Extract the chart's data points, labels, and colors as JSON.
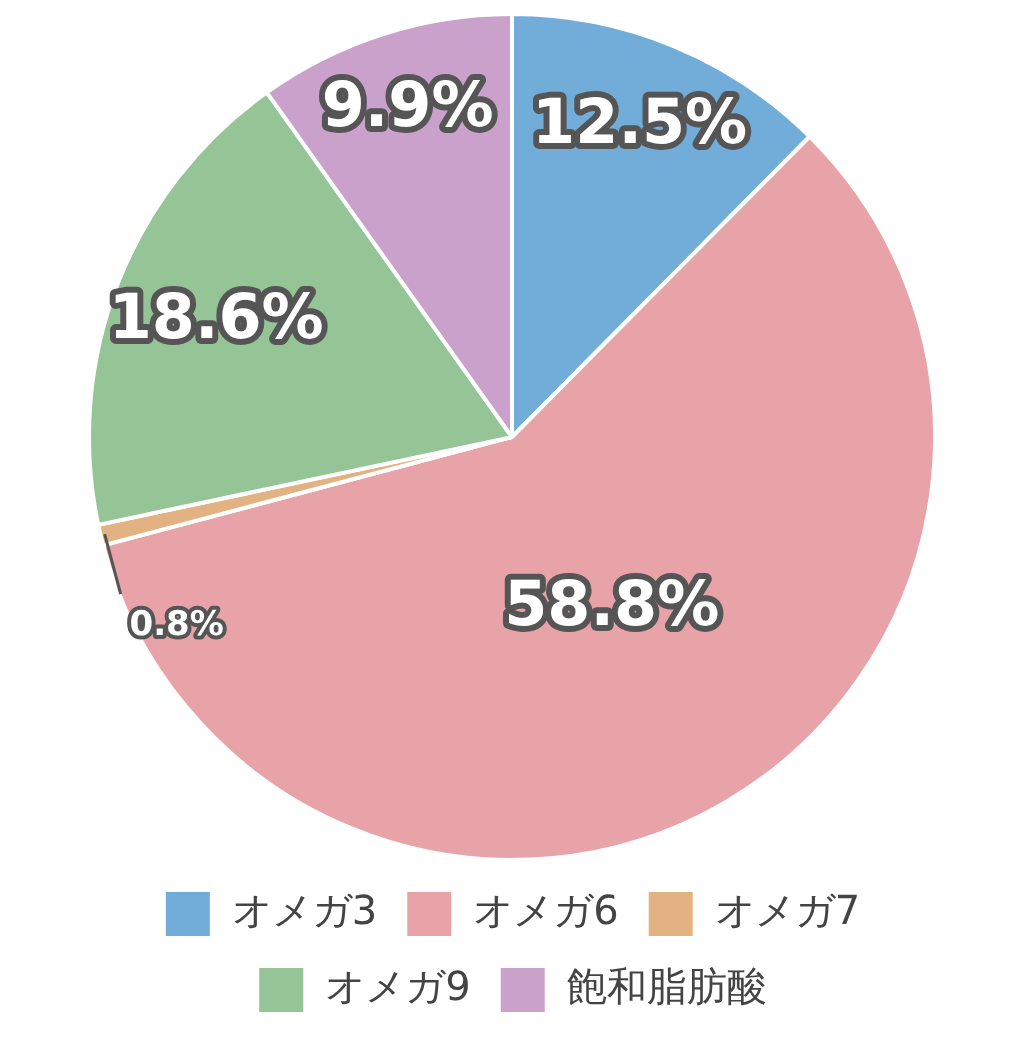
{
  "chart_data": {
    "type": "pie",
    "categories": [
      "オメガ3",
      "オメガ6",
      "オメガ7",
      "オメガ9",
      "飽和脂肪酸"
    ],
    "values": [
      12.5,
      58.8,
      0.8,
      18.6,
      9.9
    ],
    "colors": [
      "#72acd8",
      "#e8a3a8",
      "#e3b283",
      "#95c497",
      "#c9a1cb"
    ],
    "value_labels": [
      "12.5%",
      "58.8%",
      "0.8%",
      "18.6%",
      "9.9%"
    ],
    "legend": "bottom"
  }
}
